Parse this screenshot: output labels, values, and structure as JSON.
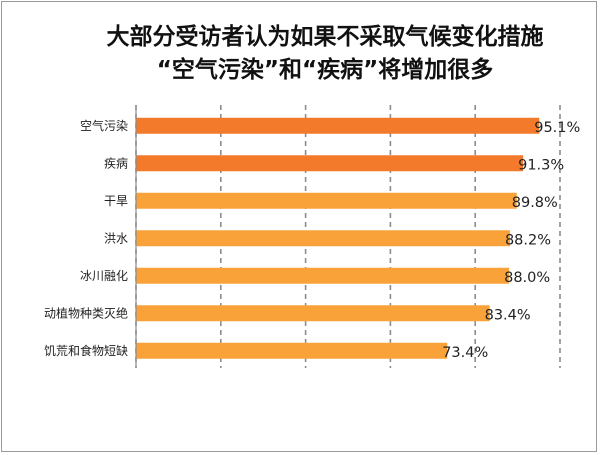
{
  "chart_data": {
    "type": "bar",
    "orientation": "horizontal",
    "title_line1": "大部分受访者认为如果不采取气候变化措施",
    "title_line2": "“空气污染”和“疾病”将增加很多",
    "categories": [
      "空气污染",
      "疾病",
      "干旱",
      "洪水",
      "冰川融化",
      "动植物种类灭绝",
      "饥荒和食物短缺"
    ],
    "values": [
      95.1,
      91.3,
      89.8,
      88.2,
      88.0,
      83.4,
      73.4
    ],
    "value_labels": [
      "95.1%",
      "91.3%",
      "89.8%",
      "88.2%",
      "88.0%",
      "83.4%",
      "73.4%"
    ],
    "bar_colors": [
      "#f47a2b",
      "#f47a2b",
      "#f9a23a",
      "#f9a23a",
      "#f9a23a",
      "#f9a23a",
      "#f9a23a"
    ],
    "xlim": [
      0,
      100
    ],
    "xlabel": "",
    "ylabel": "",
    "grid": "vertical dashed",
    "legend": "none"
  }
}
